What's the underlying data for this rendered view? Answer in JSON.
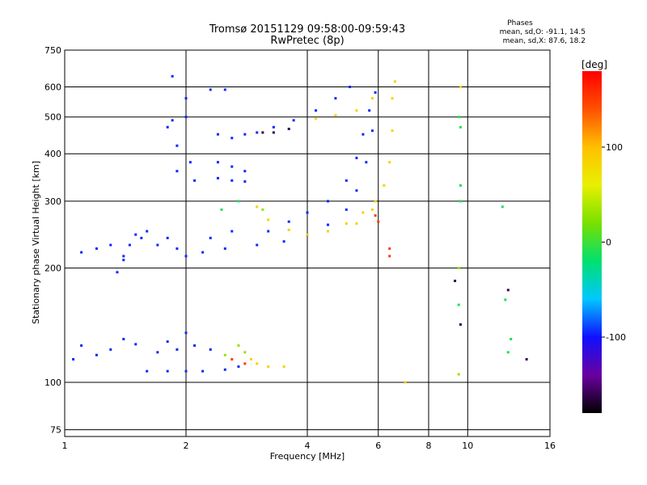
{
  "chart_data": {
    "type": "scatter",
    "title": "Tromsø 20151129 09:58:00-09:59:43",
    "subtitle": "RwPretec (8p)",
    "xlabel": "Frequency [MHz]",
    "ylabel": "Stationary phase Virtual Height [km]",
    "x_scale": "log",
    "y_scale": "log",
    "xlim": [
      1,
      16
    ],
    "ylim": [
      72,
      750
    ],
    "x_ticks": [
      1,
      2,
      4,
      6,
      8,
      10,
      16
    ],
    "x_tick_labels": [
      "1",
      "2",
      "4",
      "6",
      "8",
      "10",
      "16"
    ],
    "y_ticks": [
      75,
      100,
      200,
      300,
      400,
      500,
      600,
      750
    ],
    "y_tick_labels": [
      "75",
      "100",
      "200",
      "300",
      "400",
      "500",
      "600",
      "750"
    ],
    "grid": true,
    "phases_box": {
      "title": "Phases",
      "line_o": "mean, sd,O: -91.1, 14.5",
      "line_x": "mean, sd,X:  87.6, 18.2"
    },
    "colorbar": {
      "label": "[deg]",
      "min": -180,
      "max": 180,
      "ticks": [
        100,
        0,
        -100
      ],
      "tick_labels": [
        "100",
        "0",
        "-100"
      ],
      "colors": [
        "#000000",
        "#6a00a0",
        "#1010ff",
        "#00c8ff",
        "#00e070",
        "#78e000",
        "#e8f000",
        "#ffc000",
        "#ff5000",
        "#ff0000"
      ]
    },
    "series": [
      {
        "color_phase": -95,
        "points": [
          [
            1.6,
            107
          ],
          [
            1.8,
            107
          ],
          [
            2.0,
            107
          ],
          [
            2.2,
            107
          ],
          [
            2.5,
            108
          ],
          [
            2.7,
            110
          ],
          [
            1.05,
            115
          ],
          [
            1.1,
            125
          ],
          [
            1.2,
            118
          ],
          [
            1.3,
            122
          ],
          [
            1.4,
            130
          ],
          [
            1.5,
            126
          ],
          [
            1.7,
            120
          ],
          [
            1.9,
            122
          ],
          [
            2.1,
            125
          ],
          [
            2.3,
            122
          ],
          [
            2.0,
            135
          ],
          [
            1.8,
            128
          ],
          [
            1.35,
            195
          ],
          [
            1.4,
            210
          ],
          [
            1.45,
            230
          ],
          [
            1.5,
            245
          ],
          [
            1.55,
            240
          ],
          [
            1.6,
            250
          ],
          [
            1.7,
            230
          ],
          [
            1.8,
            240
          ],
          [
            1.9,
            225
          ],
          [
            2.0,
            215
          ],
          [
            2.2,
            220
          ],
          [
            2.5,
            225
          ],
          [
            3.0,
            230
          ],
          [
            3.5,
            235
          ],
          [
            4.0,
            245
          ],
          [
            4.5,
            260
          ],
          [
            5.0,
            285
          ],
          [
            5.3,
            320
          ],
          [
            5.6,
            380
          ],
          [
            5.8,
            460
          ],
          [
            5.9,
            580
          ],
          [
            3.2,
            250
          ],
          [
            3.6,
            265
          ],
          [
            4.0,
            280
          ],
          [
            4.5,
            300
          ],
          [
            5.0,
            340
          ],
          [
            5.3,
            390
          ],
          [
            5.5,
            450
          ],
          [
            5.7,
            520
          ],
          [
            1.8,
            470
          ],
          [
            1.85,
            490
          ],
          [
            1.9,
            420
          ],
          [
            2.0,
            500
          ],
          [
            2.05,
            380
          ],
          [
            2.1,
            340
          ],
          [
            1.9,
            360
          ],
          [
            2.4,
            450
          ],
          [
            2.6,
            440
          ],
          [
            2.8,
            450
          ],
          [
            3.0,
            455
          ],
          [
            3.3,
            470
          ],
          [
            3.7,
            490
          ],
          [
            4.2,
            520
          ],
          [
            4.7,
            560
          ],
          [
            5.1,
            600
          ],
          [
            2.4,
            380
          ],
          [
            2.6,
            370
          ],
          [
            2.8,
            360
          ],
          [
            2.4,
            345
          ],
          [
            2.6,
            340
          ],
          [
            2.8,
            338
          ],
          [
            2.3,
            590
          ],
          [
            2.5,
            590
          ],
          [
            1.85,
            640
          ],
          [
            2.0,
            560
          ],
          [
            1.1,
            220
          ],
          [
            1.2,
            225
          ],
          [
            1.3,
            230
          ],
          [
            1.4,
            215
          ],
          [
            2.3,
            240
          ],
          [
            2.6,
            250
          ]
        ]
      },
      {
        "color_phase": 85,
        "points": [
          [
            2.9,
            115
          ],
          [
            3.0,
            112
          ],
          [
            3.2,
            110
          ],
          [
            3.5,
            110
          ],
          [
            3.0,
            290
          ],
          [
            3.2,
            268
          ],
          [
            3.6,
            252
          ],
          [
            4.0,
            245
          ],
          [
            4.5,
            250
          ],
          [
            5.0,
            262
          ],
          [
            5.5,
            280
          ],
          [
            5.9,
            300
          ],
          [
            6.2,
            330
          ],
          [
            6.4,
            380
          ],
          [
            6.5,
            460
          ],
          [
            6.5,
            560
          ],
          [
            6.6,
            620
          ],
          [
            4.2,
            495
          ],
          [
            4.7,
            505
          ],
          [
            5.3,
            520
          ],
          [
            5.8,
            560
          ],
          [
            5.3,
            262
          ],
          [
            5.8,
            285
          ],
          [
            9.6,
            600
          ],
          [
            7.0,
            100
          ]
        ]
      },
      {
        "color_phase": 150,
        "points": [
          [
            2.6,
            115
          ],
          [
            6.4,
            215
          ],
          [
            6.4,
            225
          ],
          [
            6.0,
            265
          ],
          [
            5.9,
            275
          ],
          [
            2.8,
            112
          ]
        ]
      },
      {
        "color_phase": 30,
        "points": [
          [
            2.7,
            125
          ],
          [
            2.5,
            118
          ],
          [
            2.8,
            120
          ],
          [
            9.5,
            200
          ],
          [
            9.5,
            105
          ],
          [
            3.1,
            285
          ]
        ]
      },
      {
        "color_phase": -10,
        "points": [
          [
            9.5,
            500
          ],
          [
            9.6,
            470
          ],
          [
            9.6,
            330
          ],
          [
            9.6,
            300
          ],
          [
            12.2,
            290
          ],
          [
            12.8,
            130
          ],
          [
            12.6,
            120
          ],
          [
            9.5,
            160
          ],
          [
            12.4,
            165
          ],
          [
            2.45,
            285
          ],
          [
            2.7,
            300
          ]
        ]
      },
      {
        "color_phase": -160,
        "points": [
          [
            12.6,
            175
          ],
          [
            14.0,
            115
          ],
          [
            9.6,
            142
          ],
          [
            9.3,
            185
          ],
          [
            3.1,
            455
          ],
          [
            3.3,
            455
          ],
          [
            3.6,
            465
          ]
        ]
      }
    ]
  }
}
